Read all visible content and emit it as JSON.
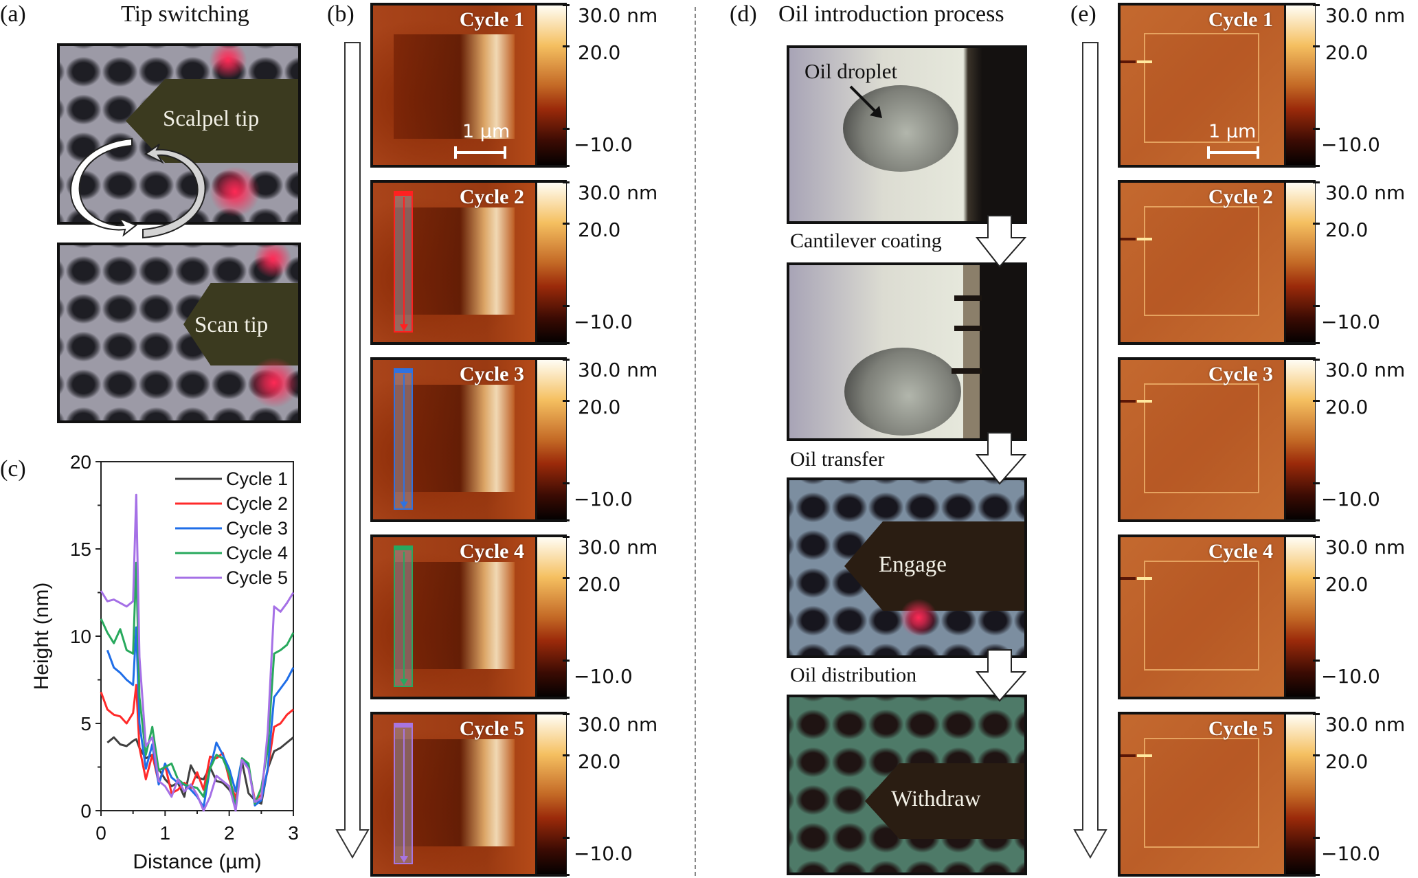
{
  "panel_a": {
    "label": "(a)",
    "title": "Tip switching",
    "top_image_text": "Scalpel tip",
    "bottom_image_text": "Scan tip"
  },
  "panel_b": {
    "label": "(b)",
    "cycles": [
      {
        "title": "Cycle 1",
        "profile_color": null
      },
      {
        "title": "Cycle 2",
        "profile_color": "#ff2020"
      },
      {
        "title": "Cycle 3",
        "profile_color": "#2f72e0"
      },
      {
        "title": "Cycle 4",
        "profile_color": "#27a860"
      },
      {
        "title": "Cycle 5",
        "profile_color": "#a875e0"
      }
    ],
    "scale_bar": "1 µm",
    "colorbar": {
      "max": "30.0 nm",
      "mid": "20.0",
      "min": "−10.0"
    }
  },
  "panel_c": {
    "label": "(c)"
  },
  "panel_d": {
    "label": "(d)",
    "title": "Oil introduction process",
    "steps": [
      {
        "caption": "",
        "image_text": "Oil droplet"
      },
      {
        "caption": "Cantilever coating",
        "image_text": ""
      },
      {
        "caption": "Oil transfer",
        "image_text": "Engage"
      },
      {
        "caption": "Oil distribution",
        "image_text": "Withdraw"
      }
    ]
  },
  "panel_e": {
    "label": "(e)",
    "cycles": [
      {
        "title": "Cycle 1"
      },
      {
        "title": "Cycle 2"
      },
      {
        "title": "Cycle 3"
      },
      {
        "title": "Cycle 4"
      },
      {
        "title": "Cycle 5"
      }
    ],
    "scale_bar": "1 µm",
    "colorbar": {
      "max": "30.0 nm",
      "mid": "20.0",
      "min": "−10.0"
    }
  },
  "chart_data": {
    "type": "line",
    "title": "",
    "xlabel": "Distance (µm)",
    "ylabel": "Height (nm)",
    "xlim": [
      0,
      3
    ],
    "ylim": [
      0,
      20
    ],
    "xticks": [
      "0",
      "1",
      "2",
      "3"
    ],
    "yticks": [
      "0",
      "5",
      "10",
      "15",
      "20"
    ],
    "grid": false,
    "legend_position": "upper right",
    "x": [
      0.0,
      0.1,
      0.2,
      0.3,
      0.4,
      0.5,
      0.55,
      0.6,
      0.7,
      0.8,
      0.9,
      1.0,
      1.1,
      1.2,
      1.3,
      1.4,
      1.5,
      1.6,
      1.7,
      1.8,
      1.9,
      2.0,
      2.1,
      2.2,
      2.3,
      2.4,
      2.5,
      2.6,
      2.7,
      2.8,
      2.9,
      3.0
    ],
    "series": [
      {
        "name": "Cycle 1",
        "color": "#404040",
        "values": [
          null,
          3.9,
          4.2,
          3.8,
          3.7,
          4.0,
          4.1,
          3.6,
          3.0,
          3.2,
          2.4,
          1.8,
          1.4,
          1.6,
          0.8,
          2.6,
          1.9,
          1.8,
          2.5,
          1.7,
          1.6,
          1.2,
          0.6,
          2.8,
          1.0,
          0.6,
          0.4,
          2.4,
          3.4,
          3.6,
          3.9,
          4.2
        ]
      },
      {
        "name": "Cycle 2",
        "color": "#ff2a2a",
        "values": [
          6.8,
          5.8,
          5.5,
          5.4,
          5.0,
          5.6,
          7.2,
          3.6,
          1.8,
          3.2,
          1.6,
          2.6,
          1.0,
          1.2,
          1.6,
          1.3,
          2.2,
          1.2,
          3.1,
          3.0,
          3.3,
          1.8,
          0.7,
          3.0,
          2.5,
          0.6,
          0.9,
          2.3,
          4.8,
          5.0,
          5.5,
          5.8
        ]
      },
      {
        "name": "Cycle 3",
        "color": "#1f6ee8",
        "values": [
          null,
          9.2,
          8.2,
          7.9,
          7.5,
          7.2,
          10.5,
          5.0,
          2.4,
          3.8,
          1.5,
          2.7,
          1.9,
          1.6,
          1.5,
          1.2,
          0.8,
          0.2,
          2.4,
          3.9,
          3.2,
          2.4,
          1.1,
          3.0,
          2.6,
          0.3,
          0.6,
          2.4,
          6.5,
          7.0,
          7.5,
          8.2
        ]
      },
      {
        "name": "Cycle 4",
        "color": "#28a95d",
        "values": [
          11.0,
          10.2,
          9.6,
          10.4,
          9.2,
          9.0,
          14.2,
          6.5,
          3.2,
          4.8,
          2.3,
          2.5,
          2.7,
          1.8,
          1.5,
          1.4,
          1.3,
          0.8,
          2.4,
          3.2,
          3.0,
          2.1,
          0.2,
          3.0,
          2.7,
          0.4,
          1.3,
          3.5,
          9.0,
          9.2,
          9.5,
          10.2
        ]
      },
      {
        "name": "Cycle 5",
        "color": "#a570e6",
        "values": [
          12.6,
          12.0,
          12.1,
          11.9,
          11.7,
          12.0,
          18.1,
          8.8,
          3.7,
          4.2,
          1.7,
          1.4,
          0.8,
          1.8,
          1.1,
          1.5,
          0.9,
          0.0,
          0.8,
          2.0,
          1.7,
          1.4,
          0.0,
          2.9,
          2.4,
          0.5,
          0.7,
          4.5,
          11.7,
          11.4,
          11.9,
          12.5
        ]
      }
    ]
  }
}
